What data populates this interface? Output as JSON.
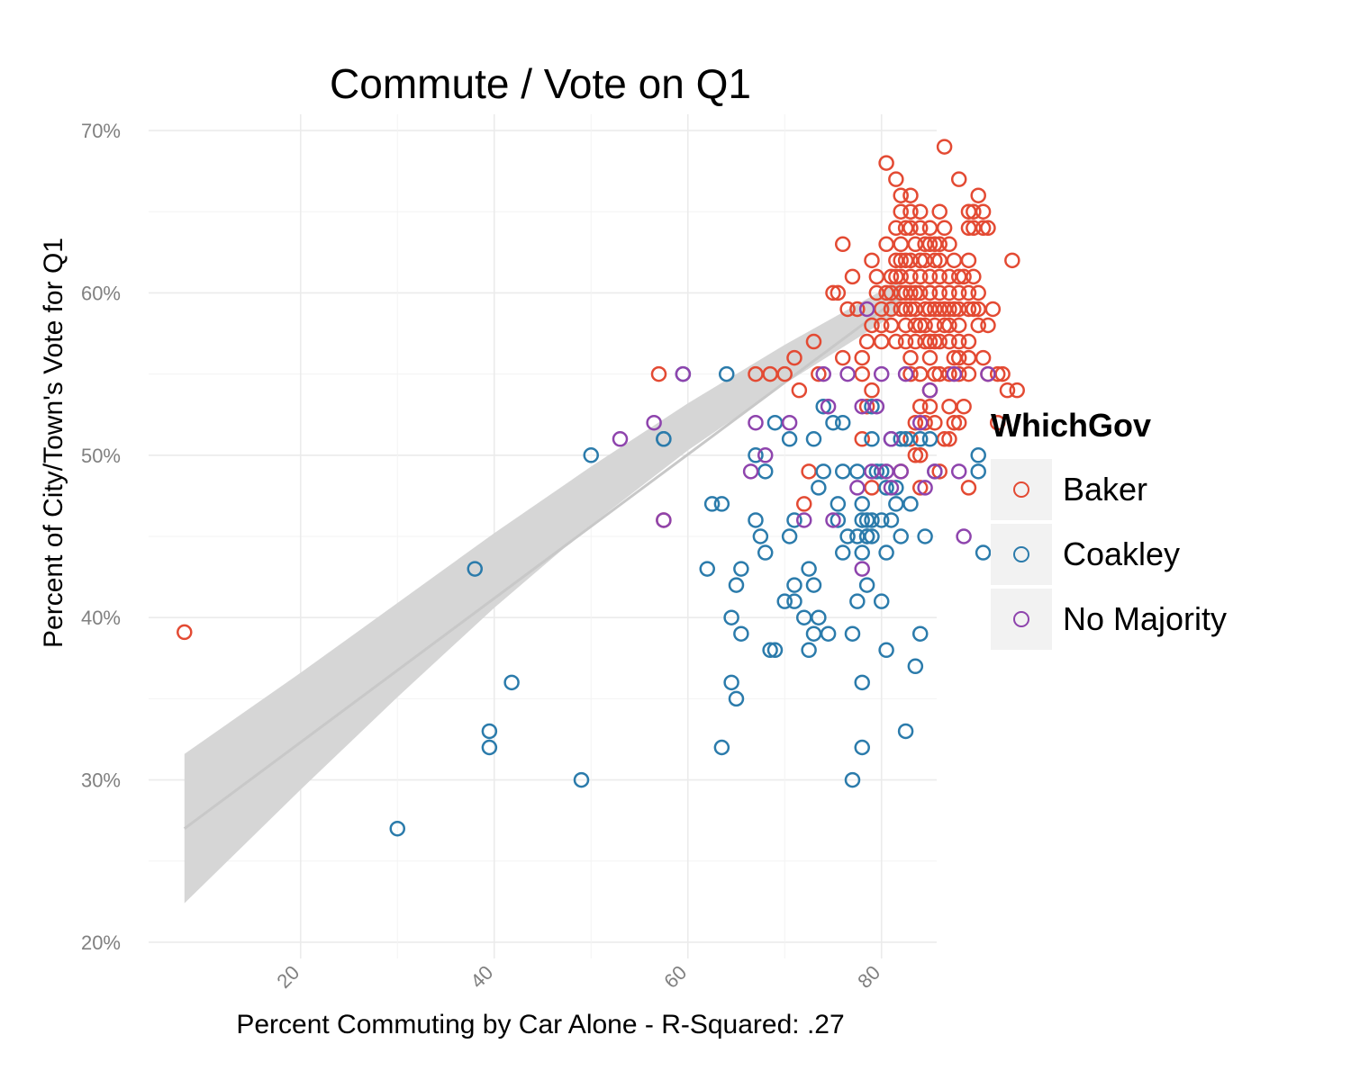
{
  "chart_data": {
    "type": "scatter",
    "title": "Commute / Vote on Q1",
    "xlabel": "Percent Commuting by Car Alone - R-Squared: .27",
    "ylabel": "Percent of City/Town's Vote for Q1",
    "xlim": [
      4.3,
      85.7
    ],
    "ylim": [
      19,
      71
    ],
    "x_ticks": [
      20,
      40,
      60,
      80
    ],
    "x_tick_labels": [
      "20",
      "40",
      "60",
      "80"
    ],
    "y_ticks": [
      20,
      30,
      40,
      50,
      60,
      70
    ],
    "y_tick_labels": [
      "20%",
      "30%",
      "40%",
      "50%",
      "60%",
      "70%"
    ],
    "grid": true,
    "legend": {
      "title": "WhichGov",
      "position": "right"
    },
    "colors": {
      "Baker": "#e34a33",
      "Coakley": "#2b7bab",
      "No Majority": "#8e44ad",
      "trend": "#c8c8c8",
      "band": "#d6d6d6",
      "grid": "#ebebeb"
    },
    "trend": {
      "x": [
        8,
        82
      ],
      "y": [
        27,
        59.8
      ]
    },
    "band_upper": [
      [
        8,
        31.6
      ],
      [
        20,
        36.6
      ],
      [
        30,
        40.9
      ],
      [
        40,
        45.2
      ],
      [
        50,
        49.3
      ],
      [
        60,
        53.2
      ],
      [
        70,
        56.8
      ],
      [
        82,
        60.8
      ]
    ],
    "band_lower": [
      [
        8,
        22.4
      ],
      [
        20,
        29.4
      ],
      [
        30,
        35.1
      ],
      [
        40,
        40.6
      ],
      [
        50,
        45.7
      ],
      [
        60,
        50.3
      ],
      [
        70,
        54.4
      ],
      [
        82,
        58.9
      ]
    ],
    "series": [
      {
        "name": "Baker",
        "points": [
          [
            8,
            39.1
          ],
          [
            57,
            55
          ],
          [
            57.5,
            46
          ],
          [
            67,
            55
          ],
          [
            68.5,
            55
          ],
          [
            70,
            55
          ],
          [
            71,
            56
          ],
          [
            73,
            57
          ],
          [
            73.5,
            55
          ],
          [
            71.5,
            54
          ],
          [
            72.5,
            49
          ],
          [
            72,
            47
          ],
          [
            75,
            60
          ],
          [
            75.5,
            60
          ],
          [
            76,
            56
          ],
          [
            76.5,
            59
          ],
          [
            77,
            61
          ],
          [
            77.5,
            59
          ],
          [
            78,
            56
          ],
          [
            78,
            55
          ],
          [
            78.5,
            53
          ],
          [
            78,
            51
          ],
          [
            79,
            48
          ],
          [
            79,
            54
          ],
          [
            76,
            63
          ],
          [
            78.5,
            57
          ],
          [
            79,
            58
          ],
          [
            79.5,
            60
          ],
          [
            79,
            62
          ],
          [
            79.5,
            61
          ],
          [
            80,
            57
          ],
          [
            80,
            59
          ],
          [
            80.5,
            63
          ],
          [
            80.5,
            68
          ],
          [
            81,
            58
          ],
          [
            81,
            60
          ],
          [
            81,
            61
          ],
          [
            81.5,
            57
          ],
          [
            81.5,
            62
          ],
          [
            81.5,
            64
          ],
          [
            81.5,
            67
          ],
          [
            82,
            60
          ],
          [
            82,
            61
          ],
          [
            82,
            63
          ],
          [
            82,
            65
          ],
          [
            82,
            66
          ],
          [
            82.5,
            58
          ],
          [
            82.5,
            59
          ],
          [
            82.5,
            60
          ],
          [
            82.5,
            64
          ],
          [
            82.5,
            62
          ],
          [
            82.5,
            57
          ],
          [
            83,
            55
          ],
          [
            83,
            56
          ],
          [
            83,
            60
          ],
          [
            83,
            61
          ],
          [
            83,
            65
          ],
          [
            83,
            66
          ],
          [
            83,
            64
          ],
          [
            83.5,
            57
          ],
          [
            83.5,
            58
          ],
          [
            83.5,
            59
          ],
          [
            83.5,
            60
          ],
          [
            83.5,
            63
          ],
          [
            84,
            60
          ],
          [
            84,
            61
          ],
          [
            84,
            64
          ],
          [
            84,
            65
          ],
          [
            84,
            55
          ],
          [
            84.5,
            57
          ],
          [
            84.5,
            58
          ],
          [
            84.5,
            62
          ],
          [
            84.5,
            63
          ],
          [
            84.5,
            59
          ],
          [
            85,
            60
          ],
          [
            85,
            61
          ],
          [
            85,
            64
          ],
          [
            85,
            56
          ],
          [
            85,
            57
          ],
          [
            85.5,
            58
          ],
          [
            85.5,
            62
          ],
          [
            85.5,
            63
          ],
          [
            85.5,
            59
          ],
          [
            84,
            50
          ],
          [
            84.5,
            52
          ],
          [
            83.5,
            52
          ],
          [
            84,
            53
          ],
          [
            85,
            54
          ],
          [
            85,
            53
          ],
          [
            85.5,
            55
          ],
          [
            86,
            60
          ],
          [
            86,
            61
          ],
          [
            86,
            62
          ],
          [
            86,
            65
          ],
          [
            86,
            57
          ],
          [
            86,
            55
          ],
          [
            86.5,
            58
          ],
          [
            86.5,
            59
          ],
          [
            86.5,
            69
          ],
          [
            86.5,
            64
          ],
          [
            87,
            57
          ],
          [
            87,
            60
          ],
          [
            87,
            61
          ],
          [
            87,
            63
          ],
          [
            87,
            55
          ],
          [
            87.5,
            59
          ],
          [
            87.5,
            56
          ],
          [
            87.5,
            62
          ],
          [
            87.5,
            52
          ],
          [
            88,
            58
          ],
          [
            88,
            59
          ],
          [
            88,
            60
          ],
          [
            88,
            67
          ],
          [
            88,
            55
          ],
          [
            88,
            57
          ],
          [
            88.5,
            61
          ],
          [
            88.5,
            53
          ],
          [
            89,
            60
          ],
          [
            89,
            62
          ],
          [
            89,
            64
          ],
          [
            89,
            65
          ],
          [
            89,
            48
          ],
          [
            89,
            56
          ],
          [
            89,
            57
          ],
          [
            89.5,
            59
          ],
          [
            89.5,
            64
          ],
          [
            89.5,
            65
          ],
          [
            89.5,
            61
          ],
          [
            90,
            60
          ],
          [
            90,
            66
          ],
          [
            90,
            58
          ],
          [
            90.5,
            64
          ],
          [
            90.5,
            65
          ],
          [
            90.5,
            56
          ],
          [
            91,
            58
          ],
          [
            91,
            64
          ],
          [
            91,
            55
          ],
          [
            91.5,
            59
          ],
          [
            92,
            52
          ],
          [
            92,
            55
          ],
          [
            92.5,
            55
          ],
          [
            93,
            54
          ],
          [
            93.5,
            62
          ],
          [
            94,
            54
          ],
          [
            86,
            49
          ],
          [
            85.5,
            57
          ],
          [
            84,
            58
          ],
          [
            85,
            59
          ],
          [
            83,
            51
          ],
          [
            84,
            48
          ],
          [
            86.5,
            51
          ],
          [
            87,
            51
          ],
          [
            87,
            53
          ],
          [
            88,
            52
          ],
          [
            85.5,
            52
          ],
          [
            82,
            49
          ],
          [
            83.5,
            50
          ],
          [
            82,
            59
          ],
          [
            83,
            59
          ],
          [
            85,
            60
          ],
          [
            86,
            59
          ],
          [
            87,
            59
          ],
          [
            88,
            61
          ],
          [
            89,
            59
          ],
          [
            80,
            58
          ],
          [
            81,
            59
          ],
          [
            82,
            62
          ],
          [
            84,
            62
          ],
          [
            85,
            63
          ],
          [
            86,
            63
          ],
          [
            87,
            58
          ],
          [
            88,
            56
          ],
          [
            89,
            55
          ],
          [
            90,
            59
          ],
          [
            80.5,
            60
          ],
          [
            81.5,
            61
          ],
          [
            83,
            62
          ]
        ]
      },
      {
        "name": "Coakley",
        "points": [
          [
            30,
            27
          ],
          [
            38,
            43
          ],
          [
            39.5,
            33
          ],
          [
            39.5,
            32
          ],
          [
            41.8,
            36
          ],
          [
            49,
            30
          ],
          [
            50,
            50
          ],
          [
            57.5,
            51
          ],
          [
            57.5,
            51
          ],
          [
            59.5,
            55
          ],
          [
            62,
            43
          ],
          [
            62.5,
            47
          ],
          [
            63.5,
            47
          ],
          [
            63.5,
            32
          ],
          [
            64,
            55
          ],
          [
            64.5,
            36
          ],
          [
            64.5,
            40
          ],
          [
            65,
            42
          ],
          [
            65,
            35
          ],
          [
            65.5,
            43
          ],
          [
            65.5,
            39
          ],
          [
            67,
            46
          ],
          [
            67,
            50
          ],
          [
            67.5,
            45
          ],
          [
            68,
            44
          ],
          [
            68,
            49
          ],
          [
            68.5,
            38
          ],
          [
            69,
            38
          ],
          [
            69,
            52
          ],
          [
            70,
            41
          ],
          [
            70.5,
            51
          ],
          [
            70.5,
            45
          ],
          [
            71,
            42
          ],
          [
            71,
            41
          ],
          [
            71,
            46
          ],
          [
            72,
            40
          ],
          [
            72.5,
            43
          ],
          [
            72.5,
            38
          ],
          [
            73,
            42
          ],
          [
            73,
            39
          ],
          [
            73,
            51
          ],
          [
            73.5,
            40
          ],
          [
            73.5,
            48
          ],
          [
            74,
            53
          ],
          [
            74,
            49
          ],
          [
            74.5,
            39
          ],
          [
            75,
            52
          ],
          [
            75.5,
            47
          ],
          [
            75.5,
            46
          ],
          [
            76,
            44
          ],
          [
            76,
            52
          ],
          [
            76,
            49
          ],
          [
            76.5,
            45
          ],
          [
            77,
            30
          ],
          [
            77,
            39
          ],
          [
            77.5,
            49
          ],
          [
            77.5,
            41
          ],
          [
            78,
            46
          ],
          [
            78,
            47
          ],
          [
            78,
            44
          ],
          [
            78,
            32
          ],
          [
            78,
            36
          ],
          [
            78.5,
            42
          ],
          [
            78.5,
            45
          ],
          [
            79,
            46
          ],
          [
            79,
            45
          ],
          [
            79,
            51
          ],
          [
            79,
            53
          ],
          [
            80,
            46
          ],
          [
            80,
            49
          ],
          [
            80,
            41
          ],
          [
            80.5,
            44
          ],
          [
            80.5,
            38
          ],
          [
            81,
            46
          ],
          [
            81,
            51
          ],
          [
            81.5,
            47
          ],
          [
            82,
            45
          ],
          [
            82.5,
            33
          ],
          [
            82.5,
            51
          ],
          [
            83,
            47
          ],
          [
            83.5,
            37
          ],
          [
            84,
            39
          ],
          [
            84.5,
            45
          ],
          [
            85,
            51
          ],
          [
            85.5,
            49
          ],
          [
            90,
            50
          ],
          [
            90,
            49
          ],
          [
            90.5,
            44
          ],
          [
            84,
            51
          ],
          [
            82,
            51
          ],
          [
            81.5,
            48
          ],
          [
            80.5,
            48
          ],
          [
            77.5,
            45
          ],
          [
            78.5,
            46
          ],
          [
            79.5,
            49
          ],
          [
            78.5,
            45
          ]
        ]
      },
      {
        "name": "No Majority",
        "points": [
          [
            53,
            51
          ],
          [
            56.5,
            52
          ],
          [
            57.5,
            46
          ],
          [
            59.5,
            55
          ],
          [
            66.5,
            49
          ],
          [
            67,
            52
          ],
          [
            68,
            50
          ],
          [
            70.5,
            52
          ],
          [
            72,
            46
          ],
          [
            74,
            55
          ],
          [
            74.5,
            53
          ],
          [
            75,
            46
          ],
          [
            76.5,
            55
          ],
          [
            77.5,
            48
          ],
          [
            78,
            53
          ],
          [
            78,
            43
          ],
          [
            78.5,
            59
          ],
          [
            79,
            49
          ],
          [
            80,
            55
          ],
          [
            81,
            51
          ],
          [
            81,
            48
          ],
          [
            82,
            49
          ],
          [
            82.5,
            55
          ],
          [
            84,
            52
          ],
          [
            84.5,
            48
          ],
          [
            85,
            54
          ],
          [
            85.5,
            49
          ],
          [
            87.5,
            55
          ],
          [
            88,
            49
          ],
          [
            88.5,
            45
          ],
          [
            91,
            55
          ],
          [
            80.5,
            49
          ],
          [
            79.5,
            53
          ]
        ]
      }
    ]
  }
}
